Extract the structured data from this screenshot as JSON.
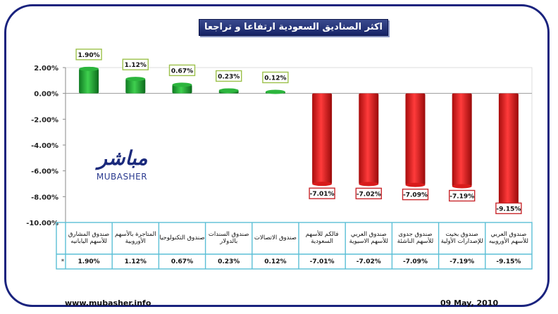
{
  "title": "اكثر الصناديق السعودية ارتفاعا و تراجعا",
  "footer": {
    "url": "www.mubasher.info",
    "date": "09 May, 2010"
  },
  "logo": {
    "arabic": "مباشر",
    "latin": "MUBASHER"
  },
  "table": {
    "row_marker": "*"
  },
  "colors": {
    "positive": "#21a336",
    "negative": "#e01818",
    "frame": "#1a237e",
    "table_border": "#5bbfd6"
  },
  "chart_data": {
    "type": "bar",
    "ylim": [
      -10,
      2
    ],
    "yticks": [
      2,
      0,
      -2,
      -4,
      -6,
      -8,
      -10
    ],
    "ytick_labels": [
      "2.00%",
      "0.00%",
      "-2.00%",
      "-4.00%",
      "-6.00%",
      "-8.00%",
      "-10.00%"
    ],
    "grid": false,
    "categories": [
      "صندوق المشارق للأسهم اليابانيه",
      "المتاجرة بالأسهم الأوروبية",
      "صندوق التكنولوجيا",
      "صندوق السندات بالدولار",
      "صندوق الاتصالات",
      "فالكم للأسهم السعودية",
      "صندوق العربي للأسهم الاسيوية",
      "صندوق جدوى للأسهم الناشئة",
      "صندوق بخيت للإصدارات الأولية",
      "صندوق العربي للأسهم الأوروبيه"
    ],
    "values": [
      1.9,
      1.12,
      0.67,
      0.23,
      0.12,
      -7.01,
      -7.02,
      -7.09,
      -7.19,
      -9.15
    ],
    "value_labels": [
      "1.90%",
      "1.12%",
      "0.67%",
      "0.23%",
      "0.12%",
      "-7.01%",
      "-7.02%",
      "-7.09%",
      "-7.19%",
      "-9.15%"
    ]
  }
}
